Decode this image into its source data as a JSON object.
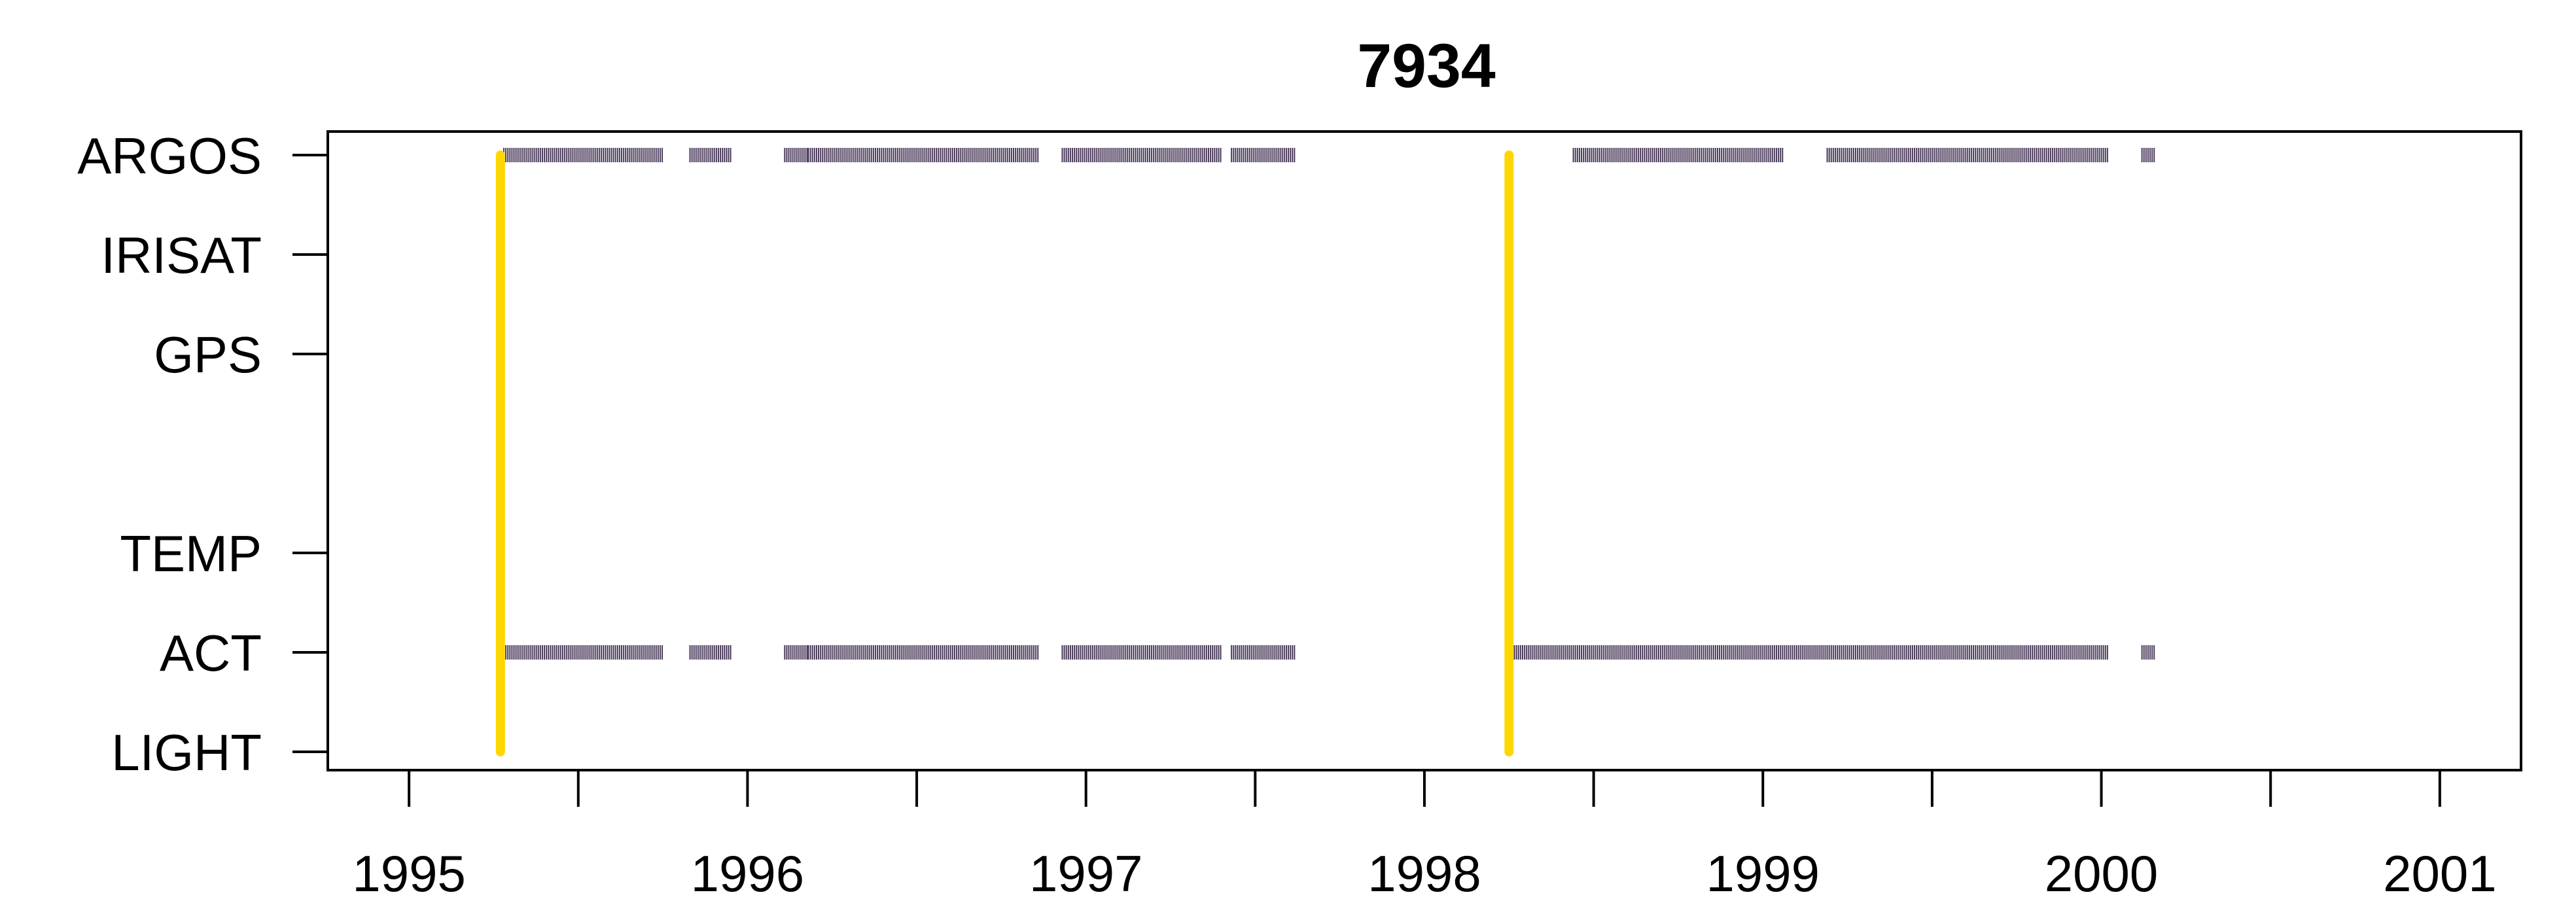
{
  "chart_data": {
    "type": "scatter",
    "title": "7934",
    "xlabel": "",
    "ylabel": "",
    "xlim": [
      1994.76,
      2001.24
    ],
    "x_ticks": [
      1995,
      1995.5,
      1996,
      1996.5,
      1997,
      1997.5,
      1998,
      1998.5,
      1999,
      1999.5,
      2000,
      2000.5,
      2001
    ],
    "x_tick_labels": [
      "1995",
      "",
      "1996",
      "",
      "1997",
      "",
      "1998",
      "",
      "1999",
      "",
      "2000",
      "",
      "2001"
    ],
    "y_categories": [
      "ARGOS",
      "IRISAT",
      "GPS",
      "",
      "TEMP",
      "ACT",
      "LIGHT"
    ],
    "grid": false,
    "legend": "none",
    "deployments": [
      1995.27,
      1998.25
    ],
    "series": [
      {
        "category": "ARGOS",
        "color": "#4a3a5a",
        "segments": [
          [
            1995.28,
            1995.75
          ],
          [
            1995.83,
            1995.95
          ],
          [
            1996.11,
            1996.18
          ],
          [
            1996.18,
            1996.86
          ],
          [
            1996.93,
            1997.4
          ],
          [
            1997.43,
            1997.62
          ],
          [
            1998.44,
            1999.06
          ],
          [
            1999.19,
            2000.02
          ],
          [
            2000.12,
            2000.16
          ]
        ]
      },
      {
        "category": "ACT",
        "color": "#4a3a5a",
        "segments": [
          [
            1995.28,
            1995.75
          ],
          [
            1995.83,
            1995.95
          ],
          [
            1996.11,
            1996.18
          ],
          [
            1996.18,
            1996.86
          ],
          [
            1996.93,
            1997.4
          ],
          [
            1997.43,
            1997.62
          ],
          [
            1998.26,
            2000.02
          ],
          [
            2000.12,
            2000.16
          ]
        ]
      }
    ],
    "deployment_color": "#ffd700"
  }
}
